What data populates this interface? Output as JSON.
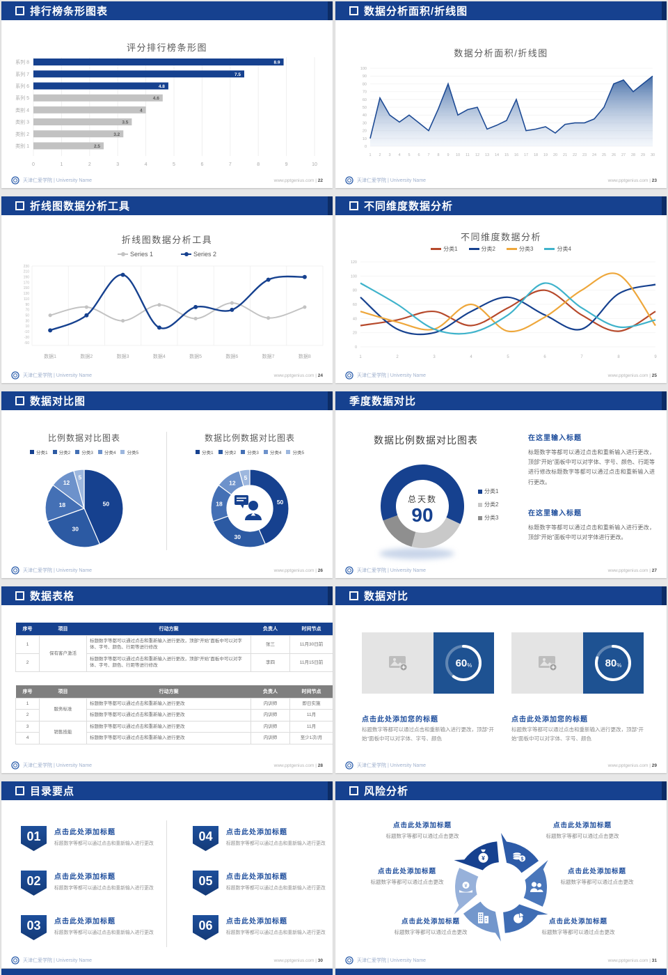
{
  "footer": {
    "school": "天津仁爱学院 | University Name",
    "url": "www.pptgenius.com",
    "separator": "|"
  },
  "colors": {
    "header_blue": "#16418f",
    "accent_blue": "#1f4e9c",
    "gray_bar": "#c2c2c2",
    "table_gray_header": "#7f7f7f",
    "card_blue": "#1e5292"
  },
  "icons": {
    "header_bullet": "checkbox-icon",
    "footer_logo": "university-seal-icon",
    "image_placeholder": "image-add-icon",
    "donut_center": "person-speech-icon",
    "risk_icons": [
      "money-bag-icon",
      "coins-icon",
      "people-icon",
      "pie-chart-icon",
      "building-icon",
      "hand-coin-icon"
    ]
  },
  "slides": {
    "s1": {
      "header": "排行榜条形图表",
      "page": "22"
    },
    "s2": {
      "header": "数据分析面积/折线图",
      "page": "23"
    },
    "s3": {
      "header": "折线图数据分析工具",
      "page": "24"
    },
    "s4": {
      "header": "不同维度数据分析",
      "page": "25"
    },
    "s5": {
      "header": "数据对比图",
      "page": "26"
    },
    "s6": {
      "header": "季度数据对比",
      "page": "27",
      "blocks": [
        {
          "title": "在这里输入标题",
          "body": "标题数字等都可以通过点击和重新输入进行更改，顶部“开始”面板中可以对字体、字号、颜色、行距等进行修改标题数字等都可以通过点击和重新输入进行更改。"
        },
        {
          "title": "在这里输入标题",
          "body": "标题数字等都可以通过点击和重新输入进行更改，顶部“开始”面板中可以对字体进行更改。"
        }
      ]
    },
    "s7": {
      "header": "数据表格",
      "page": "28",
      "table1": {
        "header_bg": "#16418f",
        "headers": [
          "序号",
          "项目",
          "行动方案",
          "负责人",
          "时间节点"
        ],
        "groups": [
          {
            "project": "保有客户激活",
            "rows": [
              {
                "no": "1",
                "action": "标题数字等都可以通过点击和重新输入进行更改，顶部“开始”面板中可以对字体、字号、颜色、行距等进行修改",
                "owner": "张三",
                "time": "11月30日前"
              },
              {
                "no": "2",
                "action": "标题数字等都可以通过点击和重新输入进行更改，顶部“开始”面板中可以对字体、字号、颜色、行距等进行修改",
                "owner": "李四",
                "time": "11月15日前"
              }
            ]
          }
        ]
      },
      "table2": {
        "header_bg": "#7f7f7f",
        "headers": [
          "序号",
          "项目",
          "行动方案",
          "负责人",
          "时间节点"
        ],
        "groups": [
          {
            "project": "服务标准",
            "rows": [
              {
                "no": "1",
                "action": "标题数字等都可以通过点击和重新输入进行更改",
                "owner": "内训师",
                "time": "即日实施"
              },
              {
                "no": "2",
                "action": "标题数字等都可以通过点击和重新输入进行更改",
                "owner": "内训师",
                "time": "11月"
              }
            ]
          },
          {
            "project": "销售技能",
            "rows": [
              {
                "no": "3",
                "action": "标题数字等都可以通过点击和重新输入进行更改",
                "owner": "内训师",
                "time": "11月"
              },
              {
                "no": "4",
                "action": "标题数字等都可以通过点击和重新输入进行更改",
                "owner": "内训师",
                "time": "至少1次/月"
              }
            ]
          }
        ]
      }
    },
    "s8": {
      "header": "数据对比",
      "page": "29",
      "percent_suffix": "%",
      "cards": [
        {
          "title": "点击此处添加您的标题",
          "body": "标题数字等都可以通过点击和重新输入进行更改，顶部“开始”面板中可以对字体、字号、颜色"
        },
        {
          "title": "点击此处添加您的标题",
          "body": "标题数字等都可以通过点击和重新输入进行更改，顶部“开始”面板中可以对字体、字号、颜色"
        }
      ]
    },
    "s9": {
      "header": "目录要点",
      "page": "30",
      "items": [
        {
          "num": "01",
          "title": "点击此处添加标题",
          "body": "标题数字等都可以通过点击和重新输入进行更改"
        },
        {
          "num": "02",
          "title": "点击此处添加标题",
          "body": "标题数字等都可以通过点击和重新输入进行更改"
        },
        {
          "num": "03",
          "title": "点击此处添加标题",
          "body": "标题数字等都可以通过点击和重新输入进行更改"
        },
        {
          "num": "04",
          "title": "点击此处添加标题",
          "body": "标题数字等都可以通过点击和重新输入进行更改"
        },
        {
          "num": "05",
          "title": "点击此处添加标题",
          "body": "标题数字等都可以通过点击和重新输入进行更改"
        },
        {
          "num": "06",
          "title": "点击此处添加标题",
          "body": "标题数字等都可以通过点击和重新输入进行更改"
        }
      ]
    },
    "s10": {
      "header": "风险分析",
      "page": "31",
      "labels": [
        {
          "title": "点击此处添加标题",
          "body": "标题数字等都可以通过点击更改"
        },
        {
          "title": "点击此处添加标题",
          "body": "标题数字等都可以通过点击更改"
        },
        {
          "title": "点击此处添加标题",
          "body": "标题数字等都可以通过点击更改"
        },
        {
          "title": "点击此处添加标题",
          "body": "标题数字等都可以通过点击更改"
        },
        {
          "title": "点击此处添加标题",
          "body": "标题数字等都可以通过点击更改"
        },
        {
          "title": "点击此处添加标题",
          "body": "标题数字等都可以通过点击更改"
        }
      ]
    }
  },
  "chart_data": [
    {
      "type": "bar",
      "orientation": "horizontal",
      "title": "评分排行榜条形图",
      "categories": [
        "系列 8",
        "系列 7",
        "系列 6",
        "系列 5",
        "类别 4",
        "类别 3",
        "类别 2",
        "类别 1"
      ],
      "values": [
        8.9,
        7.5,
        4.8,
        4.6,
        4,
        3.5,
        3.2,
        2.5
      ],
      "colors": [
        "#16418f",
        "#16418f",
        "#16418f",
        "#c2c2c2",
        "#c2c2c2",
        "#c2c2c2",
        "#c2c2c2",
        "#c2c2c2"
      ],
      "xlim": [
        0,
        10
      ],
      "x_ticks": [
        0,
        1,
        2,
        3,
        4,
        5,
        6,
        7,
        8,
        9,
        10
      ],
      "grid": true
    },
    {
      "type": "area",
      "title": "数据分析面积/折线图",
      "x": [
        1,
        2,
        3,
        4,
        5,
        6,
        7,
        8,
        9,
        10,
        11,
        12,
        13,
        14,
        15,
        16,
        17,
        18,
        19,
        20,
        21,
        22,
        23,
        24,
        25,
        26,
        27,
        28,
        29,
        30
      ],
      "values": [
        10,
        62,
        40,
        31,
        40,
        30,
        20,
        48,
        80,
        40,
        47,
        50,
        22,
        27,
        33,
        60,
        20,
        22,
        25,
        17,
        28,
        30,
        30,
        35,
        50,
        80,
        85,
        70,
        80,
        90
      ],
      "ylim": [
        0,
        100
      ],
      "y_step": 10,
      "line_color": "#1d4a94",
      "fill_top": "#35619f",
      "fill_bottom": "#dfe8f5"
    },
    {
      "type": "line",
      "title": "折线图数据分析工具",
      "smooth": true,
      "markers": true,
      "categories": [
        "数据1",
        "数据2",
        "数据3",
        "数据4",
        "数据5",
        "数据6",
        "数据7",
        "数据8"
      ],
      "series": [
        {
          "name": "Series 1",
          "color": "#c3c3c3",
          "values": [
            50,
            80,
            30,
            88,
            38,
            95,
            40,
            80
          ]
        },
        {
          "name": "Series 2",
          "color": "#16418f",
          "values": [
            -5,
            50,
            198,
            5,
            80,
            70,
            180,
            190
          ]
        }
      ],
      "ylim": [
        -50,
        230
      ],
      "y_step": 20,
      "legend_position": "top"
    },
    {
      "type": "line",
      "title": "不同维度数据分析",
      "smooth": true,
      "markers": false,
      "x": [
        1,
        2,
        3,
        4,
        5,
        6,
        7,
        8,
        9
      ],
      "series": [
        {
          "name": "分类1",
          "color": "#b6492b",
          "values": [
            30,
            38,
            50,
            30,
            55,
            80,
            45,
            22,
            50
          ]
        },
        {
          "name": "分类2",
          "color": "#16418f",
          "values": [
            70,
            25,
            20,
            50,
            70,
            45,
            25,
            75,
            88
          ]
        },
        {
          "name": "分类3",
          "color": "#eea73b",
          "values": [
            50,
            35,
            25,
            60,
            22,
            42,
            80,
            102,
            30
          ]
        },
        {
          "name": "分类4",
          "color": "#3fb3cb",
          "values": [
            90,
            60,
            25,
            20,
            45,
            90,
            55,
            28,
            38
          ]
        }
      ],
      "ylim": [
        0,
        120
      ],
      "y_step": 20,
      "legend_position": "top"
    },
    {
      "type": "pie",
      "title": "比例数据对比图表",
      "labels": [
        "分类1",
        "分类2",
        "分类3",
        "分类4",
        "分类5"
      ],
      "values": [
        50,
        30,
        18,
        12,
        5
      ],
      "colors": [
        "#16418f",
        "#2c5aa3",
        "#4470b5",
        "#6d92cb",
        "#9db7de"
      ]
    },
    {
      "type": "donut",
      "title": "数据比例数据对比图表",
      "labels": [
        "分类1",
        "分类2",
        "分类3",
        "分类4",
        "分类5"
      ],
      "values": [
        50,
        30,
        18,
        12,
        5
      ],
      "colors": [
        "#16418f",
        "#2c5aa3",
        "#4470b5",
        "#6d92cb",
        "#9db7de"
      ]
    },
    {
      "type": "donut",
      "title": "数据比例数据对比图表",
      "center_label": "总天数",
      "center_value": "90",
      "labels": [
        "分类1",
        "分类2",
        "分类3"
      ],
      "values": [
        62.5,
        22.2,
        15.3
      ],
      "colors": [
        "#16418f",
        "#c9c9c9",
        "#8f8f8f"
      ],
      "start_deg": 250
    },
    {
      "type": "progress-ring",
      "values": [
        60,
        80
      ],
      "ring_color": "#ffffff"
    }
  ]
}
